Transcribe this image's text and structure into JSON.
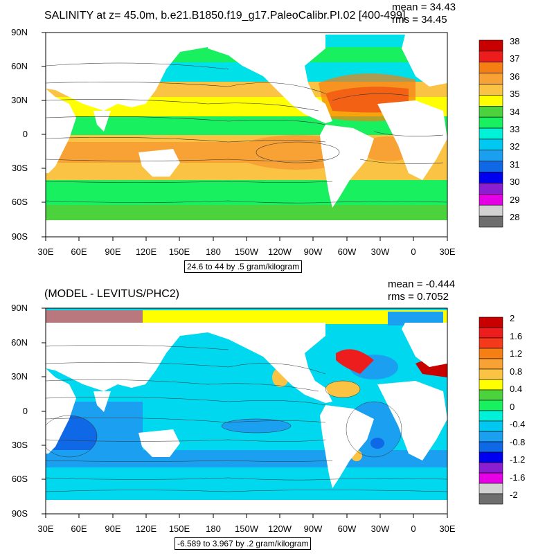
{
  "panels": [
    {
      "title": "SALINITY at z=  45.0m, b.e21.B1850.f19_g17.PaleoCalibr.PI.02 [400-499]",
      "mean": "mean = 34.43",
      "rms": "rms = 34.45",
      "range_label": "24.6 to 44 by .5 gram/kilogram",
      "colorbar_labels": [
        "38",
        "37",
        "36",
        "35",
        "34",
        "33",
        "32",
        "31",
        "30",
        "29",
        "28"
      ],
      "colorbar_colors": [
        "#c80000",
        "#ee1d1d",
        "#f57f13",
        "#f8a236",
        "#fbc343",
        "#ffff00",
        "#4bd23c",
        "#19f060",
        "#00f0d8",
        "#00c8f0",
        "#1b9ff0",
        "#0f68e6",
        "#0000f0",
        "#8a1ed0",
        "#e600e6",
        "#d2d2d2",
        "#6e6e6e"
      ]
    },
    {
      "title": "(MODEL - LEVITUS/PHC2)",
      "mean": "mean = -0.444",
      "rms": "rms = 0.7052",
      "range_label": "-6.589 to 3.967 by .2 gram/kilogram",
      "colorbar_labels": [
        "2",
        "1.6",
        "1.2",
        "0.8",
        "0.4",
        "0",
        "-0.4",
        "-0.8",
        "-1.2",
        "-1.6",
        "-2"
      ],
      "colorbar_colors": [
        "#c80000",
        "#ee1d1d",
        "#f53a1b",
        "#f57f13",
        "#f8a236",
        "#fbc343",
        "#ffff00",
        "#4bd23c",
        "#19f060",
        "#00f0d8",
        "#00c8f0",
        "#1b9ff0",
        "#0f68e6",
        "#0000f0",
        "#8a1ed0",
        "#e600e6",
        "#d2d2d2",
        "#6e6e6e"
      ]
    }
  ],
  "lat_labels": [
    "90N",
    "60N",
    "30N",
    "0",
    "30S",
    "60S",
    "90S"
  ],
  "lon_labels": [
    "30E",
    "60E",
    "90E",
    "120E",
    "150E",
    "180",
    "150W",
    "120W",
    "90W",
    "60W",
    "30W",
    "0",
    "30E"
  ],
  "colors": {
    "land": "#ffffff",
    "salinity_low": "#00e0e8",
    "salinity_mid": "#ffff00",
    "salinity_high": "#f8a236",
    "diff_neutral": "#00d8f0",
    "diff_negative": "#1b9ff0"
  }
}
